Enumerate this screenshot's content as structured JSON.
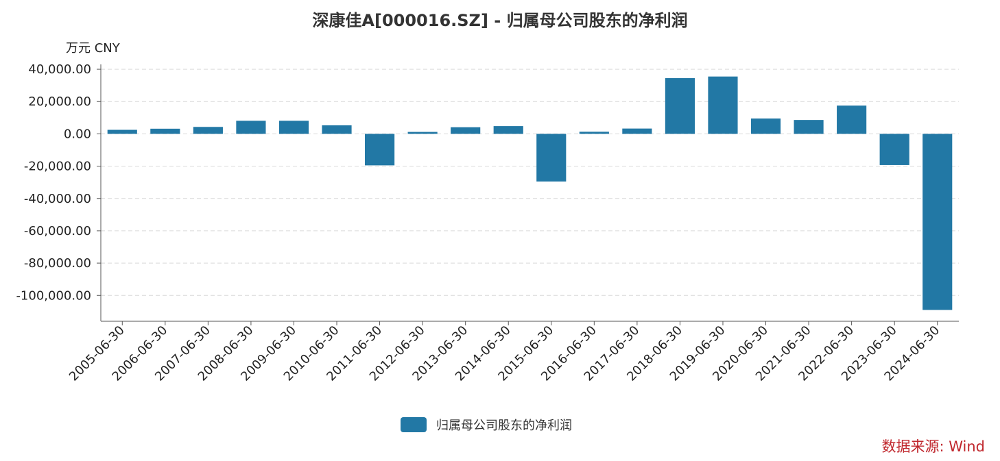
{
  "title": "深康佳A[000016.SZ] - 归属母公司股东的净利润",
  "unit_label": "万元  CNY",
  "source_label": "数据来源: Wind",
  "colors": {
    "bar": "#2278a5",
    "source": "#c0272d"
  },
  "chart_data": {
    "type": "bar",
    "categories": [
      "2005-06-30",
      "2006-06-30",
      "2007-06-30",
      "2008-06-30",
      "2009-06-30",
      "2010-06-30",
      "2011-06-30",
      "2012-06-30",
      "2013-06-30",
      "2014-06-30",
      "2015-06-30",
      "2016-06-30",
      "2017-06-30",
      "2018-06-30",
      "2019-06-30",
      "2020-06-30",
      "2021-06-30",
      "2022-06-30",
      "2023-06-30",
      "2024-06-30"
    ],
    "series": [
      {
        "name": "归属母公司股东的净利润",
        "values": [
          2500,
          3200,
          4300,
          8100,
          8100,
          5300,
          -19500,
          1200,
          4100,
          4800,
          -29500,
          1300,
          3300,
          34500,
          35500,
          9500,
          8600,
          17500,
          -19300,
          -109000
        ]
      }
    ],
    "yticks": [
      40000,
      20000,
      0,
      -20000,
      -40000,
      -60000,
      -80000,
      -100000
    ],
    "ytick_labels": [
      "40,000.00",
      "20,000.00",
      "0.00",
      "-20,000.00",
      "-40,000.00",
      "-60,000.00",
      "-80,000.00",
      "-100,000.00"
    ],
    "ylim": [
      -116000,
      43000
    ],
    "grid": true,
    "legend_position": "bottom"
  }
}
